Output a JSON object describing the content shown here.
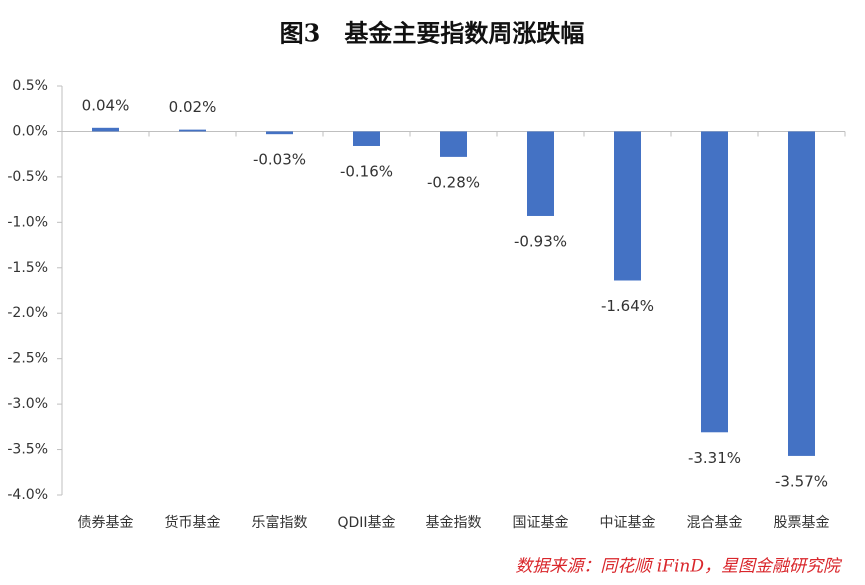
{
  "chart_data": {
    "type": "bar",
    "title": "图3　基金主要指数周涨跌幅",
    "source": "数据来源：同花顺 iFinD，星图金融研究院",
    "categories": [
      "债券基金",
      "货币基金",
      "乐富指数",
      "QDII基金",
      "基金指数",
      "国证基金",
      "中证基金",
      "混合基金",
      "股票基金"
    ],
    "values": [
      0.04,
      0.02,
      -0.03,
      -0.16,
      -0.28,
      -0.93,
      -1.64,
      -3.31,
      -3.57
    ],
    "value_labels": [
      "0.04%",
      "0.02%",
      "-0.03%",
      "-0.16%",
      "-0.28%",
      "-0.93%",
      "-1.64%",
      "-3.31%",
      "-3.57%"
    ],
    "color": "#4472c4",
    "ylim": [
      -4,
      0.5
    ],
    "yticks": [
      {
        "value": 0.5,
        "label": "0.5%"
      },
      {
        "value": 0,
        "label": "0.0%"
      },
      {
        "value": -0.5,
        "label": "-0.5%"
      },
      {
        "value": -1,
        "label": "-1.0%"
      },
      {
        "value": -1.5,
        "label": "-1.5%"
      },
      {
        "value": -2,
        "label": "-2.0%"
      },
      {
        "value": -2.5,
        "label": "-2.5%"
      },
      {
        "value": -3,
        "label": "-3.0%"
      },
      {
        "value": -3.5,
        "label": "-3.5%"
      },
      {
        "value": -4,
        "label": "-4.0%"
      }
    ],
    "grid": false
  }
}
